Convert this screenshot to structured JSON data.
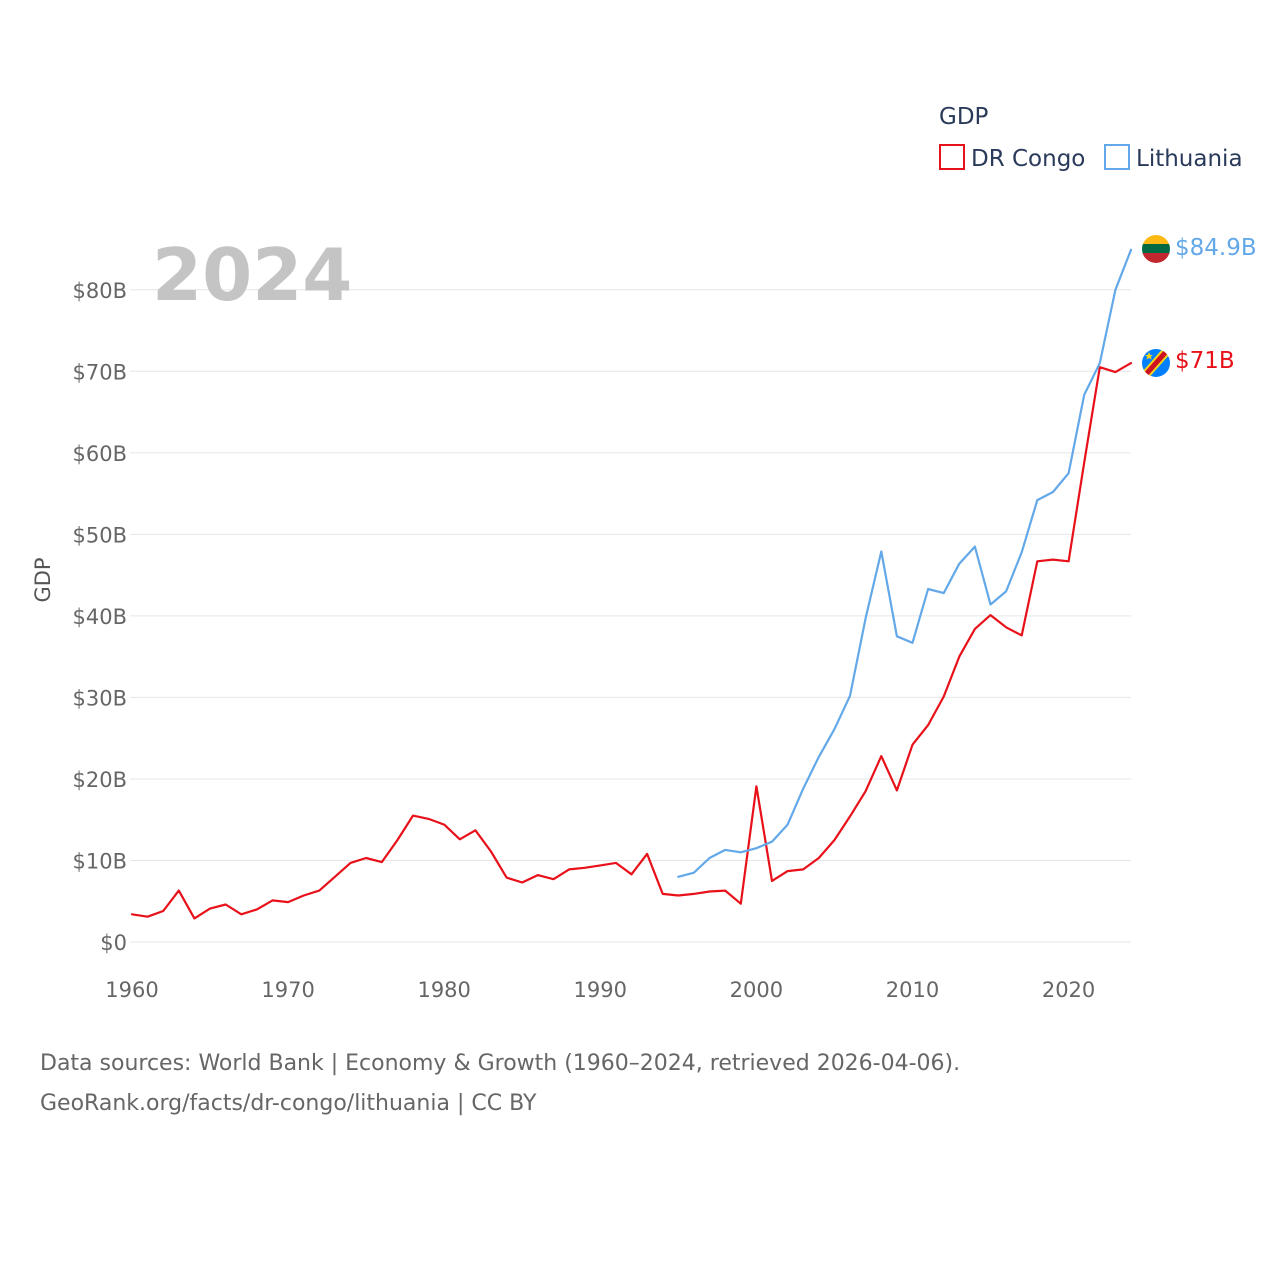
{
  "chart_data": {
    "type": "line",
    "title": "",
    "year_label": "2024",
    "ylabel": "GDP",
    "xlabel": "",
    "xlim": [
      1960,
      2024
    ],
    "ylim": [
      0,
      85
    ],
    "x_ticks": [
      1960,
      1970,
      1980,
      1990,
      2000,
      2010,
      2020
    ],
    "y_ticks": [
      {
        "value": 0,
        "label": "$0"
      },
      {
        "value": 10,
        "label": "$10B"
      },
      {
        "value": 20,
        "label": "$20B"
      },
      {
        "value": 30,
        "label": "$30B"
      },
      {
        "value": 40,
        "label": "$40B"
      },
      {
        "value": 50,
        "label": "$50B"
      },
      {
        "value": 60,
        "label": "$60B"
      },
      {
        "value": 70,
        "label": "$70B"
      },
      {
        "value": 80,
        "label": "$80B"
      }
    ],
    "legend": {
      "title": "GDP",
      "position": "top-right"
    },
    "grid": true,
    "series": [
      {
        "name": "DR Congo",
        "color": "#e8111a",
        "end_label": "$71B",
        "flag": "dr-congo-flag-icon",
        "x": [
          1960,
          1961,
          1962,
          1963,
          1964,
          1965,
          1966,
          1967,
          1968,
          1969,
          1970,
          1971,
          1972,
          1973,
          1974,
          1975,
          1976,
          1977,
          1978,
          1979,
          1980,
          1981,
          1982,
          1983,
          1984,
          1985,
          1986,
          1987,
          1988,
          1989,
          1990,
          1991,
          1992,
          1993,
          1994,
          1995,
          1996,
          1997,
          1998,
          1999,
          2000,
          2001,
          2002,
          2003,
          2004,
          2005,
          2006,
          2007,
          2008,
          2009,
          2010,
          2011,
          2012,
          2013,
          2014,
          2015,
          2016,
          2017,
          2018,
          2019,
          2020,
          2021,
          2022,
          2023,
          2024
        ],
        "values": [
          3.4,
          3.1,
          3.8,
          6.3,
          2.9,
          4.1,
          4.6,
          3.4,
          4.0,
          5.1,
          4.9,
          5.7,
          6.3,
          8.0,
          9.7,
          10.3,
          9.8,
          12.5,
          15.5,
          15.1,
          14.4,
          12.6,
          13.7,
          11.1,
          7.9,
          7.3,
          8.2,
          7.7,
          8.9,
          9.1,
          9.4,
          9.7,
          8.3,
          10.8,
          5.9,
          5.7,
          5.9,
          6.2,
          6.3,
          4.7,
          19.1,
          7.5,
          8.7,
          8.9,
          10.3,
          12.5,
          15.4,
          18.5,
          22.8,
          18.6,
          24.2,
          26.6,
          30.1,
          35.0,
          38.4,
          40.1,
          38.6,
          37.6,
          46.7,
          46.9,
          46.7,
          58.8,
          70.5,
          69.9,
          71.0
        ]
      },
      {
        "name": "Lithuania",
        "color": "#63a8e8",
        "end_label": "$84.9B",
        "flag": "lithuania-flag-icon",
        "x": [
          1995,
          1996,
          1997,
          1998,
          1999,
          2000,
          2001,
          2002,
          2003,
          2004,
          2005,
          2006,
          2007,
          2008,
          2009,
          2010,
          2011,
          2012,
          2013,
          2014,
          2015,
          2016,
          2017,
          2018,
          2019,
          2020,
          2021,
          2022,
          2023,
          2024
        ],
        "values": [
          8.0,
          8.5,
          10.3,
          11.3,
          11.0,
          11.5,
          12.3,
          14.4,
          18.8,
          22.7,
          26.1,
          30.2,
          39.7,
          47.9,
          37.5,
          36.7,
          43.3,
          42.8,
          46.4,
          48.5,
          41.4,
          43.0,
          47.8,
          54.2,
          55.2,
          57.5,
          67.1,
          71.0,
          80.0,
          84.9
        ]
      }
    ]
  },
  "source_lines": [
    "Data sources: World Bank | Economy & Growth (1960–2024, retrieved 2026-04-06).",
    "GeoRank.org/facts/dr-congo/lithuania | CC BY"
  ]
}
